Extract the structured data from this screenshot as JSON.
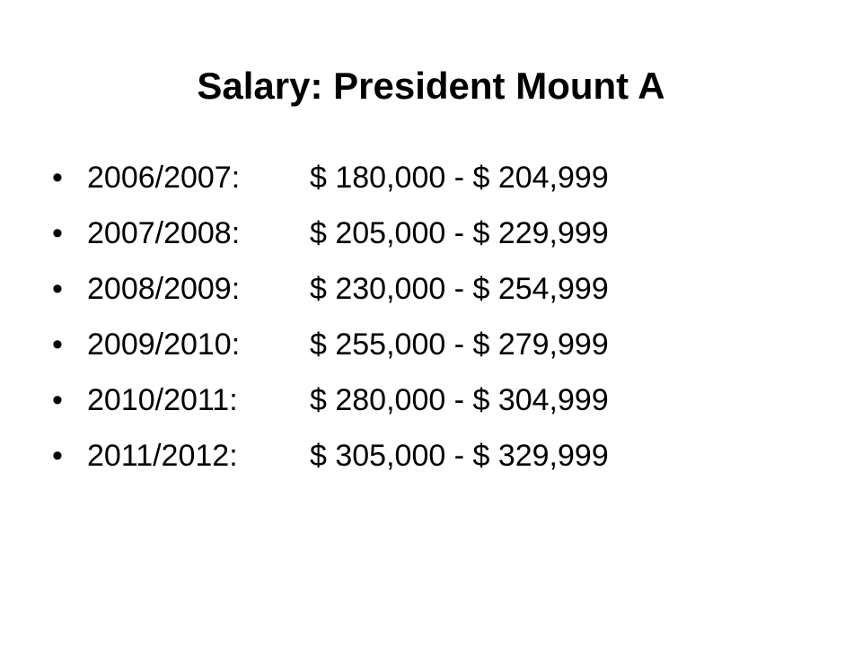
{
  "header": {
    "title": "Salary: President Mount A"
  },
  "items": [
    {
      "year": "2006/2007:",
      "range": "$ 180,000 - $ 204,999"
    },
    {
      "year": "2007/2008:",
      "range": "$ 205,000 - $ 229,999"
    },
    {
      "year": "2008/2009:",
      "range": "$ 230,000 - $ 254,999"
    },
    {
      "year": "2009/2010:",
      "range": "$ 255,000 - $ 279,999"
    },
    {
      "year": "2010/2011:",
      "range": "$ 280,000 - $ 304,999"
    },
    {
      "year": "2011/2012:",
      "range": "$ 305,000 - $ 329,999"
    }
  ]
}
